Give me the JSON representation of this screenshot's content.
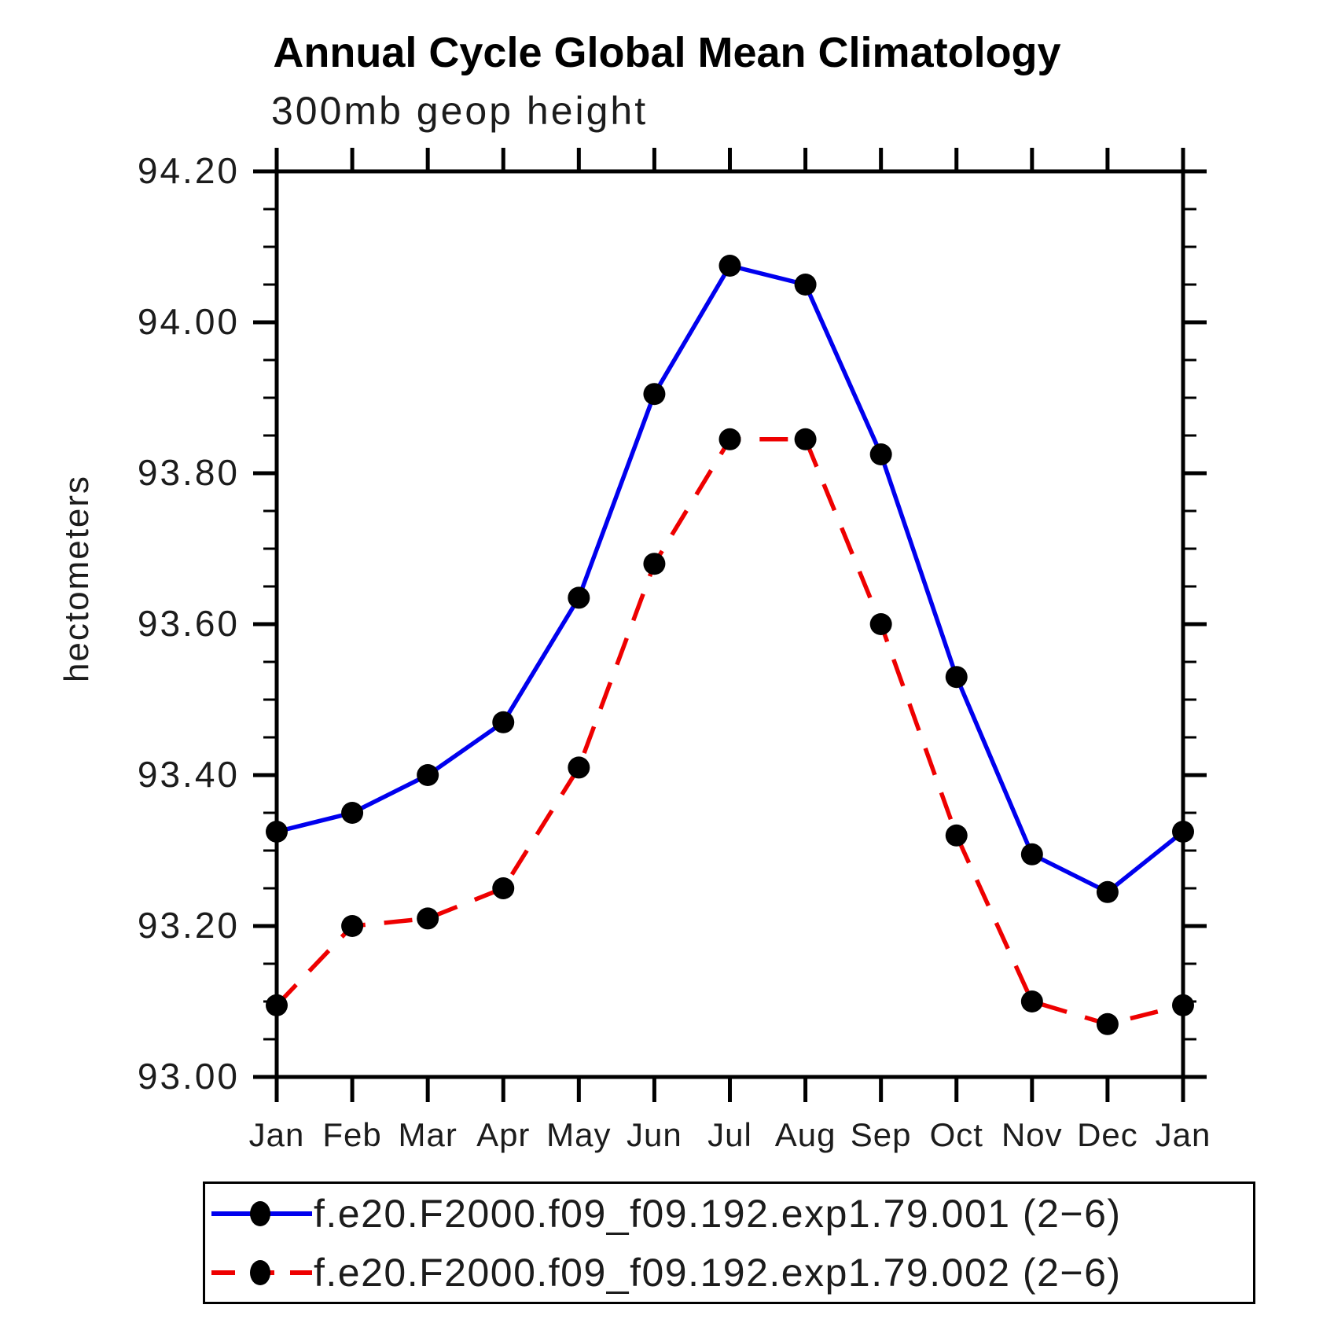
{
  "page": {
    "background": "#ffffff"
  },
  "chart_data": {
    "type": "line",
    "title": "Annual Cycle Global Mean Climatology",
    "subtitle": "300mb geop height",
    "ylabel": "hectometers",
    "xlabel": "",
    "categories": [
      "Jan",
      "Feb",
      "Mar",
      "Apr",
      "May",
      "Jun",
      "Jul",
      "Aug",
      "Sep",
      "Oct",
      "Nov",
      "Dec",
      "Jan"
    ],
    "ylim": [
      93.0,
      94.2
    ],
    "y_major_tick_step": 0.2,
    "y_minor_tick_step": 0.05,
    "y_tick_labels": [
      "93.00",
      "93.20",
      "93.40",
      "93.60",
      "93.80",
      "94.00",
      "94.20"
    ],
    "grid": false,
    "legend_position": "bottom",
    "axis_color": "#000000",
    "marker_color": "#000000",
    "series": [
      {
        "name": "f.e20.F2000.f09_f09.192.exp1.79.001 (2−6)",
        "color": "#0000ee",
        "line_style": "solid",
        "marker": "filled-circle",
        "values": [
          93.325,
          93.35,
          93.4,
          93.47,
          93.635,
          93.905,
          94.075,
          94.05,
          93.825,
          93.53,
          93.295,
          93.245,
          93.325
        ]
      },
      {
        "name": "f.e20.F2000.f09_f09.192.exp1.79.002 (2−6)",
        "color": "#ee0000",
        "line_style": "dashed",
        "marker": "filled-circle",
        "values": [
          93.095,
          93.2,
          93.21,
          93.25,
          93.41,
          93.68,
          93.845,
          93.845,
          93.6,
          93.32,
          93.1,
          93.07,
          93.095
        ]
      }
    ]
  }
}
